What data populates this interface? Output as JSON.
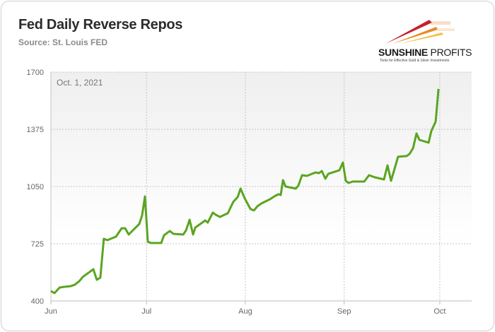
{
  "header": {
    "title": "Fed Daily Reverse Repos",
    "subtitle": "Source: St. Louis FED"
  },
  "logo": {
    "name_bold": "SUNSHINE",
    "name_light": "PROFITS",
    "tagline": "Tools for Effective Gold & Silver Investments"
  },
  "chart_data": {
    "type": "line",
    "title": "Fed Daily Reverse Repos",
    "subtitle": "Source: St. Louis FED",
    "annotation": "Oct. 1, 2021",
    "xlabel": "",
    "ylabel": "",
    "x_unit": "days since Jun 1, 2021",
    "xlim": [
      0,
      132
    ],
    "ylim": [
      400,
      1700
    ],
    "yticks": [
      400,
      725,
      1050,
      1375,
      1700
    ],
    "xticks": [
      {
        "day": 0,
        "label": "Jun"
      },
      {
        "day": 30,
        "label": "Jul"
      },
      {
        "day": 61,
        "label": "Aug"
      },
      {
        "day": 92,
        "label": "Sep"
      },
      {
        "day": 122,
        "label": "Oct"
      }
    ],
    "grid": true,
    "line_color": "#5aa520",
    "series": [
      {
        "name": "Reverse Repos",
        "points": [
          [
            0,
            456
          ],
          [
            1.1,
            444
          ],
          [
            2.7,
            476
          ],
          [
            4,
            480
          ],
          [
            6.2,
            484
          ],
          [
            7.5,
            492
          ],
          [
            8.9,
            512
          ],
          [
            10,
            536
          ],
          [
            13.3,
            580
          ],
          [
            14.4,
            520
          ],
          [
            15.5,
            532
          ],
          [
            16.6,
            753
          ],
          [
            17.7,
            745
          ],
          [
            20.4,
            765
          ],
          [
            22.2,
            813
          ],
          [
            23.3,
            813
          ],
          [
            24.4,
            777
          ],
          [
            27.7,
            837
          ],
          [
            28.6,
            885
          ],
          [
            29.5,
            994
          ],
          [
            30.4,
            737
          ],
          [
            31.3,
            729
          ],
          [
            34.6,
            729
          ],
          [
            35.5,
            773
          ],
          [
            37.3,
            797
          ],
          [
            38.4,
            781
          ],
          [
            41.5,
            777
          ],
          [
            42.4,
            801
          ],
          [
            43.5,
            861
          ],
          [
            44.6,
            777
          ],
          [
            45.3,
            817
          ],
          [
            48.4,
            857
          ],
          [
            49.2,
            845
          ],
          [
            50.8,
            902
          ],
          [
            51.7,
            890
          ],
          [
            53,
            877
          ],
          [
            55.5,
            898
          ],
          [
            57.2,
            962
          ],
          [
            58.6,
            990
          ],
          [
            59.5,
            1038
          ],
          [
            60.8,
            982
          ],
          [
            62.6,
            922
          ],
          [
            63.7,
            914
          ],
          [
            64.8,
            938
          ],
          [
            66.1,
            954
          ],
          [
            68.8,
            978
          ],
          [
            70.1,
            994
          ],
          [
            71.4,
            1006
          ],
          [
            72.1,
            1002
          ],
          [
            72.8,
            1086
          ],
          [
            73.6,
            1050
          ],
          [
            76.8,
            1038
          ],
          [
            77.6,
            1054
          ],
          [
            78.8,
            1114
          ],
          [
            80.3,
            1110
          ],
          [
            83,
            1130
          ],
          [
            84.1,
            1126
          ],
          [
            85,
            1138
          ],
          [
            86.1,
            1094
          ],
          [
            87,
            1122
          ],
          [
            90.5,
            1142
          ],
          [
            91.6,
            1186
          ],
          [
            92.5,
            1082
          ],
          [
            93.4,
            1070
          ],
          [
            94.7,
            1078
          ],
          [
            98.3,
            1078
          ],
          [
            99.8,
            1114
          ],
          [
            101.6,
            1102
          ],
          [
            104.5,
            1090
          ],
          [
            105.6,
            1170
          ],
          [
            106.7,
            1082
          ],
          [
            108.9,
            1219
          ],
          [
            111.6,
            1223
          ],
          [
            112.5,
            1235
          ],
          [
            113.6,
            1267
          ],
          [
            114.7,
            1351
          ],
          [
            115.6,
            1315
          ],
          [
            118.5,
            1299
          ],
          [
            119.3,
            1363
          ],
          [
            120.7,
            1419
          ],
          [
            121.6,
            1604
          ]
        ]
      }
    ]
  }
}
